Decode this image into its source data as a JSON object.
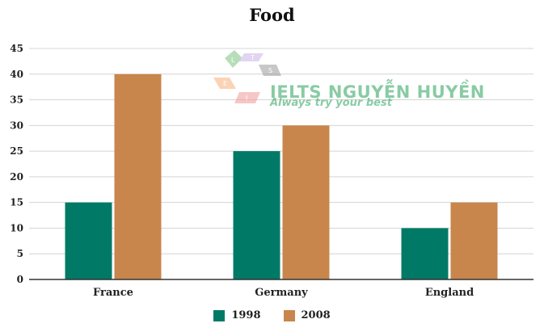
{
  "chart_data": {
    "type": "bar",
    "title": "Food",
    "xlabel": "",
    "ylabel": "",
    "categories": [
      "France",
      "Germany",
      "England"
    ],
    "series": [
      {
        "name": "1998",
        "values": [
          15,
          25,
          10
        ],
        "color": "#007a66"
      },
      {
        "name": "2008",
        "values": [
          40,
          30,
          15
        ],
        "color": "#c8864c"
      }
    ],
    "ylim": [
      0,
      45
    ],
    "yticks": [
      0,
      5,
      10,
      15,
      20,
      25,
      30,
      35,
      40,
      45
    ],
    "grid": true,
    "legend_position": "bottom-center"
  },
  "watermark": {
    "name": "IELTS NGUYỄN HUYỀN",
    "slogan": "Always try your best",
    "logo_letters": [
      "L",
      "T",
      "S",
      "E",
      "I"
    ]
  }
}
